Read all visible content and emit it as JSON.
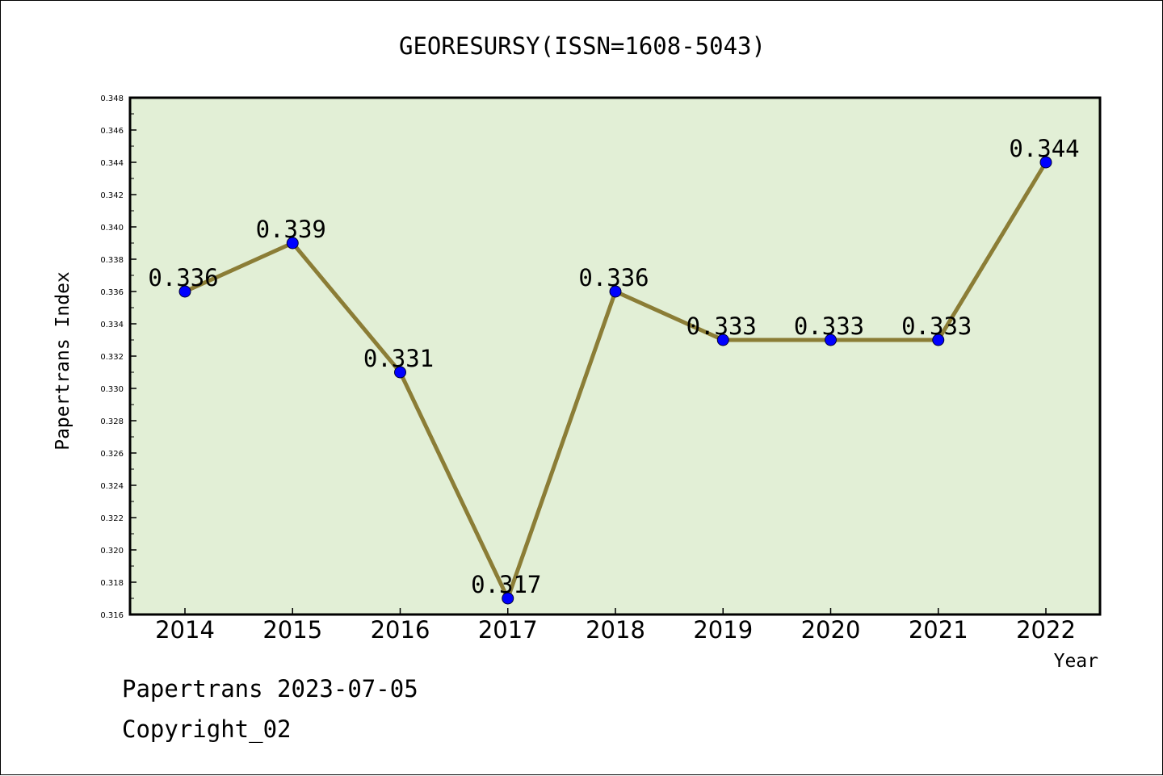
{
  "footer": {
    "line1": "Papertrans 2023-07-05",
    "line2": "Copyright_02"
  },
  "chart_data": {
    "type": "line",
    "title": "GEORESURSY(ISSN=1608-5043)",
    "xlabel": "Year",
    "ylabel": "Papertrans Index",
    "x": [
      "2014",
      "2015",
      "2016",
      "2017",
      "2018",
      "2019",
      "2020",
      "2021",
      "2022"
    ],
    "series": [
      {
        "values": [
          0.336,
          0.339,
          0.331,
          0.317,
          0.336,
          0.333,
          0.333,
          0.333,
          0.344
        ],
        "data_labels": [
          "0.336",
          "0.339",
          "0.331",
          "0.317",
          "0.336",
          "0.333",
          "0.333",
          "0.333",
          "0.344"
        ]
      }
    ],
    "ylim": [
      0.316,
      0.348
    ],
    "yticks": [
      "0.316",
      "0.318",
      "0.320",
      "0.322",
      "0.324",
      "0.326",
      "0.328",
      "0.330",
      "0.332",
      "0.334",
      "0.336",
      "0.338",
      "0.340",
      "0.342",
      "0.344",
      "0.346",
      "0.348"
    ],
    "grid": false,
    "colors": {
      "plot_background": "#e2efd6",
      "line": "#8b7d36",
      "marker": "#0000ff",
      "axis": "#000000"
    }
  }
}
